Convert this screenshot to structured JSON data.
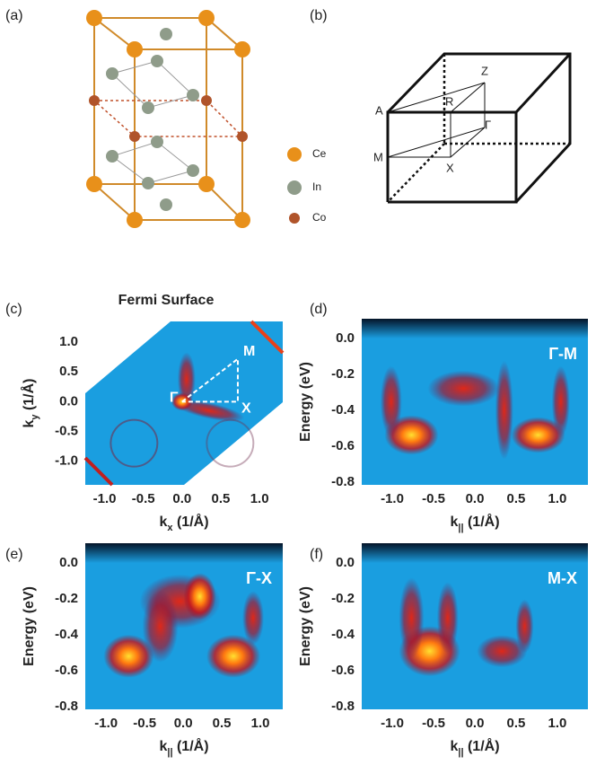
{
  "panel_labels": [
    "(a)",
    "(b)",
    "(c)",
    "(d)",
    "(e)",
    "(f)"
  ],
  "legend": [
    {
      "label": "Ce",
      "color": "#e8901a"
    },
    {
      "label": "In",
      "color": "#8f9c8a"
    },
    {
      "label": "Co",
      "color": "#b0542a"
    }
  ],
  "bz_labels": [
    "A",
    "R",
    "Z",
    "Γ",
    "M",
    "X"
  ],
  "plots": [
    {
      "title": "Fermi Surface",
      "path_labels": [
        "M",
        "Γ",
        "X"
      ],
      "xlabel": {
        "main": "k",
        "sub": "x",
        "unit": " (1/Å)"
      },
      "ylabel": {
        "main": "k",
        "sub": "y",
        "unit": " (1/Å)"
      },
      "xlim": [
        -1.25,
        1.3
      ],
      "ylim": [
        -1.4,
        1.35
      ],
      "xticks": [
        {
          "value": -1,
          "label": "-1.0"
        },
        {
          "value": -0.5,
          "label": "-0.5"
        },
        {
          "value": 0,
          "label": "0.0"
        },
        {
          "value": 0.5,
          "label": "0.5"
        },
        {
          "value": 1,
          "label": "1.0"
        }
      ],
      "yticks": [
        {
          "value": 1,
          "label": "1.0"
        },
        {
          "value": 0.5,
          "label": "0.5"
        },
        {
          "value": 0,
          "label": "0.0"
        },
        {
          "value": -0.5,
          "label": "-0.5"
        },
        {
          "value": -1,
          "label": "-1.0"
        }
      ]
    },
    {
      "inset": "Γ-M",
      "xlabel": {
        "main": "k",
        "sub": "||",
        "unit": " (1/Å)"
      },
      "ylabel": {
        "main": "Energy (eV)"
      },
      "xlim": [
        -1.37,
        1.37
      ],
      "ylim": [
        -0.815,
        0.11
      ],
      "xticks": [
        {
          "value": -1,
          "label": "-1.0"
        },
        {
          "value": -0.5,
          "label": "-0.5"
        },
        {
          "value": 0,
          "label": "0.0"
        },
        {
          "value": 0.5,
          "label": "0.5"
        },
        {
          "value": 1,
          "label": "1.0"
        }
      ],
      "yticks": [
        {
          "value": 0,
          "label": "0.0"
        },
        {
          "value": -0.2,
          "label": "-0.2"
        },
        {
          "value": -0.4,
          "label": "-0.4"
        },
        {
          "value": -0.6,
          "label": "-0.6"
        },
        {
          "value": -0.8,
          "label": "-0.8"
        }
      ]
    },
    {
      "inset": "Γ-X",
      "xlabel": {
        "main": "k",
        "sub": "||",
        "unit": " (1/Å)"
      },
      "ylabel": {
        "main": "Energy (eV)"
      },
      "xlim": [
        -1.27,
        1.29
      ],
      "ylim": [
        -0.815,
        0.11
      ],
      "xticks": [
        {
          "value": -1,
          "label": "-1.0"
        },
        {
          "value": -0.5,
          "label": "-0.5"
        },
        {
          "value": 0,
          "label": "0.0"
        },
        {
          "value": 0.5,
          "label": "0.5"
        },
        {
          "value": 1,
          "label": "1.0"
        }
      ],
      "yticks": [
        {
          "value": 0,
          "label": "0.0"
        },
        {
          "value": -0.2,
          "label": "-0.2"
        },
        {
          "value": -0.4,
          "label": "-0.4"
        },
        {
          "value": -0.6,
          "label": "-0.6"
        },
        {
          "value": -0.8,
          "label": "-0.8"
        }
      ]
    },
    {
      "inset": "M-X",
      "xlabel": {
        "main": "k",
        "sub": "||",
        "unit": " (1/Å)"
      },
      "ylabel": {
        "main": "Energy (eV)"
      },
      "xlim": [
        -1.37,
        1.37
      ],
      "ylim": [
        -0.815,
        0.11
      ],
      "xticks": [
        {
          "value": -1,
          "label": "-1.0"
        },
        {
          "value": -0.5,
          "label": "-0.5"
        },
        {
          "value": 0,
          "label": "0.0"
        },
        {
          "value": 0.5,
          "label": "0.5"
        },
        {
          "value": 1,
          "label": "1.0"
        }
      ],
      "yticks": [
        {
          "value": 0,
          "label": "0.0"
        },
        {
          "value": -0.2,
          "label": "-0.2"
        },
        {
          "value": -0.4,
          "label": "-0.4"
        },
        {
          "value": -0.6,
          "label": "-0.6"
        },
        {
          "value": -0.8,
          "label": "-0.8"
        }
      ]
    }
  ]
}
